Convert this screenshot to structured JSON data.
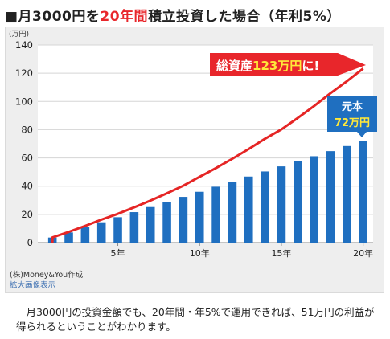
{
  "title": {
    "prefix": "■月3000円を",
    "highlight": "20年間",
    "suffix": "積立投資した場合（年利5%）"
  },
  "chart_data": {
    "type": "bar",
    "y_unit": "(万円)",
    "x": [
      1,
      2,
      3,
      4,
      5,
      6,
      7,
      8,
      9,
      10,
      11,
      12,
      13,
      14,
      15,
      16,
      17,
      18,
      19,
      20
    ],
    "x_ticks": [
      {
        "value": 5,
        "label": "5年"
      },
      {
        "value": 10,
        "label": "10年"
      },
      {
        "value": 15,
        "label": "15年"
      },
      {
        "value": 20,
        "label": "20年"
      }
    ],
    "y_ticks": [
      0,
      20,
      40,
      60,
      80,
      100,
      120,
      140
    ],
    "ylim": [
      0,
      140
    ],
    "grid": true,
    "series": [
      {
        "kind": "bar",
        "color": "#1f6fc0",
        "values": [
          3.6,
          7.2,
          10.8,
          14.4,
          18,
          21.6,
          25.2,
          28.8,
          32.4,
          36,
          39.6,
          43.2,
          46.8,
          50.4,
          54,
          57.6,
          61.2,
          64.8,
          68.4,
          72
        ]
      },
      {
        "kind": "line",
        "color": "#e52525",
        "values": [
          3.7,
          7.6,
          11.8,
          16.3,
          20.4,
          25.0,
          29.8,
          34.9,
          40.3,
          46.6,
          52.8,
          59.4,
          66.3,
          73.6,
          80.2,
          88.3,
          96.8,
          105.8,
          114.3,
          123.3
        ]
      }
    ],
    "annotations": {
      "total_prefix": "総資産",
      "total_value": "123万円",
      "total_suffix": "に!",
      "principal_line1": "元本",
      "principal_line2": "72万円"
    }
  },
  "credit": {
    "source": "(株)Money&You作成",
    "enlarge_link": "拡大画像表示"
  },
  "caption": "　月3000円の投資金額でも、20年間・年5%で運用できれば、51万円の利益が得られるということがわかります。",
  "colors": {
    "accent_red": "#e8262b",
    "bar_blue": "#1f6fc0",
    "highlight_yellow": "#ffe83a",
    "link_blue": "#3d70b2"
  }
}
